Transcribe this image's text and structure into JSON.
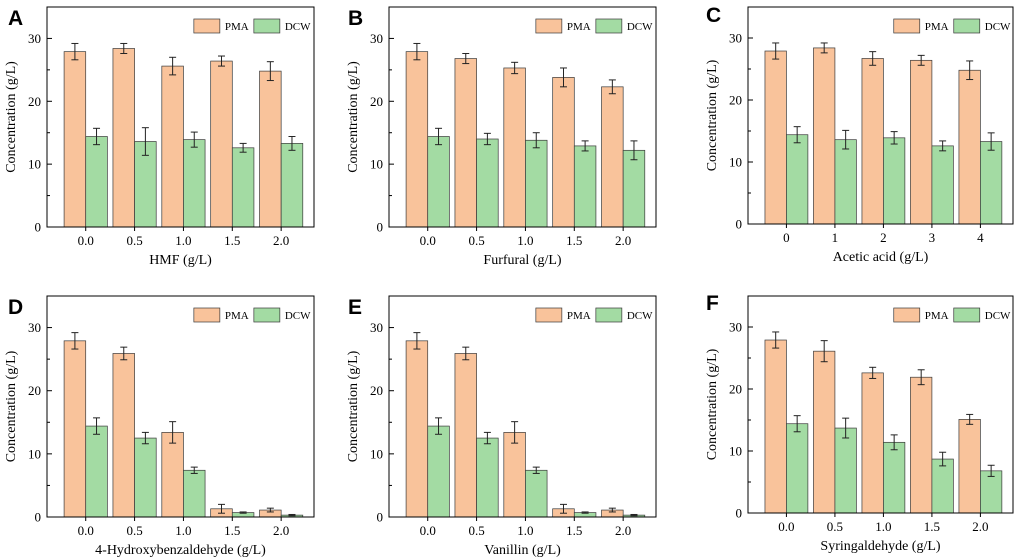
{
  "colors": {
    "pma": "#F9C39B",
    "dcw": "#A3DBA3",
    "stroke": "#3a3a3a"
  },
  "legend": {
    "pma": "PMA",
    "dcw": "DCW"
  },
  "chart_data": [
    {
      "panel": "A",
      "type": "bar",
      "categories": [
        "0.0",
        "0.5",
        "1.0",
        "1.5",
        "2.0"
      ],
      "series": [
        {
          "name": "PMA",
          "values": [
            27.9,
            28.4,
            25.6,
            26.4,
            24.8
          ],
          "errors": [
            1.3,
            0.8,
            1.4,
            0.8,
            1.5
          ]
        },
        {
          "name": "DCW",
          "values": [
            14.4,
            13.6,
            13.9,
            12.6,
            13.3
          ],
          "errors": [
            1.3,
            2.2,
            1.2,
            0.7,
            1.1
          ]
        }
      ],
      "xlabel": "HMF (g/L)",
      "ylabel": "Concentration (g/L)",
      "ylim": [
        0,
        35
      ],
      "yticks": [
        0,
        10,
        20,
        30
      ]
    },
    {
      "panel": "B",
      "type": "bar",
      "categories": [
        "0.0",
        "0.5",
        "1.0",
        "1.5",
        "2.0"
      ],
      "series": [
        {
          "name": "PMA",
          "values": [
            27.9,
            26.8,
            25.3,
            23.8,
            22.3
          ],
          "errors": [
            1.3,
            0.8,
            0.9,
            1.5,
            1.1
          ]
        },
        {
          "name": "DCW",
          "values": [
            14.4,
            14.0,
            13.8,
            12.9,
            12.2
          ],
          "errors": [
            1.3,
            0.9,
            1.2,
            0.8,
            1.5
          ]
        }
      ],
      "xlabel": "Furfural (g/L)",
      "ylabel": "Concentration (g/L)",
      "ylim": [
        0,
        35
      ],
      "yticks": [
        0,
        10,
        20,
        30
      ]
    },
    {
      "panel": "C",
      "type": "bar",
      "categories": [
        "0",
        "1",
        "2",
        "3",
        "4"
      ],
      "series": [
        {
          "name": "PMA",
          "values": [
            27.9,
            28.4,
            26.7,
            26.4,
            24.8
          ],
          "errors": [
            1.3,
            0.8,
            1.1,
            0.8,
            1.5
          ]
        },
        {
          "name": "DCW",
          "values": [
            14.4,
            13.6,
            13.9,
            12.6,
            13.3
          ],
          "errors": [
            1.3,
            1.5,
            1.0,
            0.8,
            1.4
          ]
        }
      ],
      "xlabel": "Acetic acid (g/L)",
      "ylabel": "Concentration (g/L)",
      "ylim": [
        0,
        35
      ],
      "yticks": [
        0,
        10,
        20,
        30
      ]
    },
    {
      "panel": "D",
      "type": "bar",
      "categories": [
        "0.0",
        "0.5",
        "1.0",
        "1.5",
        "2.0"
      ],
      "series": [
        {
          "name": "PMA",
          "values": [
            27.9,
            25.9,
            13.4,
            1.3,
            1.1
          ],
          "errors": [
            1.3,
            1.0,
            1.7,
            0.7,
            0.3
          ]
        },
        {
          "name": "DCW",
          "values": [
            14.4,
            12.5,
            7.4,
            0.7,
            0.3
          ],
          "errors": [
            1.3,
            0.9,
            0.5,
            0.1,
            0.1
          ]
        }
      ],
      "xlabel": "4-Hydroxybenzaldehyde (g/L)",
      "ylabel": "Concentration (g/L)",
      "ylim": [
        0,
        35
      ],
      "yticks": [
        0,
        10,
        20,
        30
      ]
    },
    {
      "panel": "E",
      "type": "bar",
      "categories": [
        "0.0",
        "0.5",
        "1.0",
        "1.5",
        "2.0"
      ],
      "series": [
        {
          "name": "PMA",
          "values": [
            27.9,
            25.9,
            13.4,
            1.3,
            1.1
          ],
          "errors": [
            1.3,
            1.0,
            1.7,
            0.7,
            0.3
          ]
        },
        {
          "name": "DCW",
          "values": [
            14.4,
            12.5,
            7.4,
            0.7,
            0.3
          ],
          "errors": [
            1.3,
            0.9,
            0.5,
            0.1,
            0.1
          ]
        }
      ],
      "xlabel": "Vanillin (g/L)",
      "ylabel": "Concentration (g/L)",
      "ylim": [
        0,
        35
      ],
      "yticks": [
        0,
        10,
        20,
        30
      ]
    },
    {
      "panel": "F",
      "type": "bar",
      "categories": [
        "0.0",
        "0.5",
        "1.0",
        "1.5",
        "2.0"
      ],
      "series": [
        {
          "name": "PMA",
          "values": [
            27.9,
            26.1,
            22.6,
            21.9,
            15.1
          ],
          "errors": [
            1.3,
            1.7,
            0.9,
            1.2,
            0.8
          ]
        },
        {
          "name": "DCW",
          "values": [
            14.4,
            13.7,
            11.4,
            8.7,
            6.8
          ],
          "errors": [
            1.3,
            1.6,
            1.2,
            1.1,
            0.9
          ]
        }
      ],
      "xlabel": "Syringaldehyde (g/L)",
      "ylabel": "Concentration (g/L)",
      "ylim": [
        0,
        35
      ],
      "yticks": [
        0,
        10,
        20,
        30
      ]
    }
  ]
}
